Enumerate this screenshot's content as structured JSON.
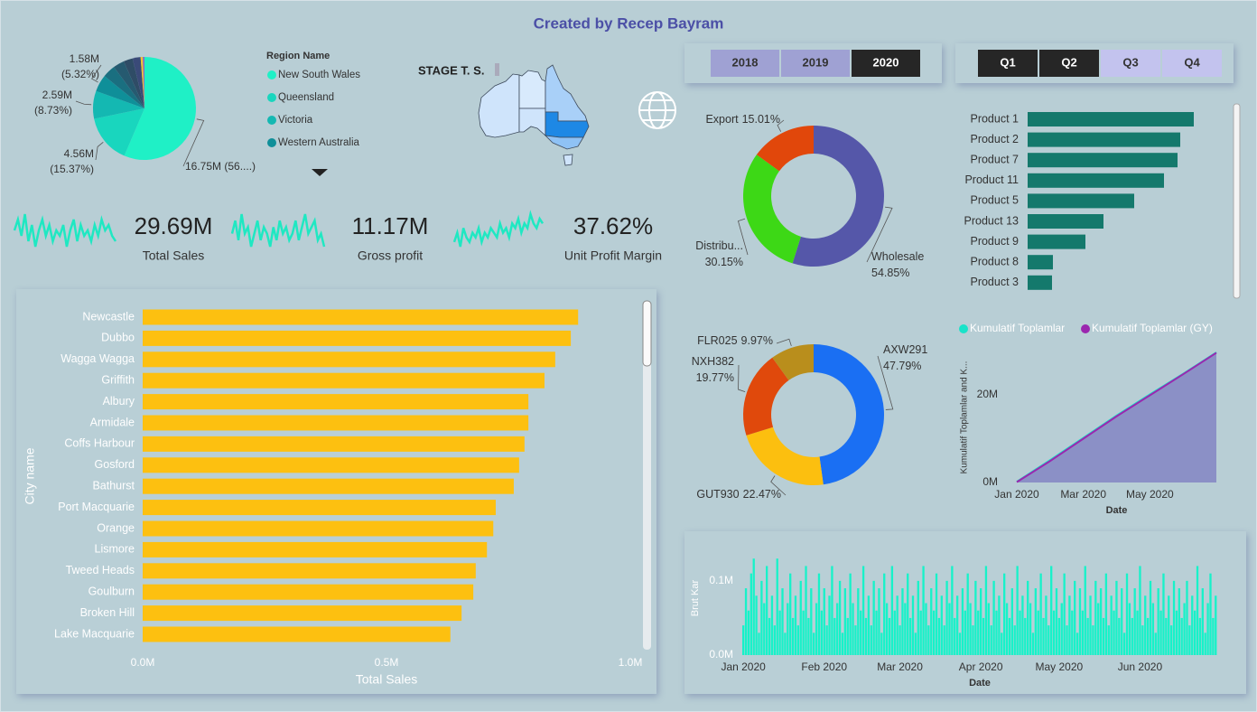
{
  "header": {
    "title": "Created by Recep Bayram"
  },
  "slicers": {
    "years": [
      "2018",
      "2019",
      "2020"
    ],
    "years_selected": [
      false,
      false,
      true
    ],
    "quarters": [
      "Q1",
      "Q2",
      "Q3",
      "Q4"
    ],
    "quarters_selected": [
      true,
      true,
      false,
      false
    ]
  },
  "map": {
    "title": "STAGE T. S."
  },
  "kpis": [
    {
      "value": "29.69M",
      "label": "Total Sales",
      "trend": [
        6,
        8,
        5,
        9,
        4,
        7,
        3,
        6,
        8,
        5,
        7,
        4,
        6,
        5,
        7,
        3,
        6,
        8,
        4,
        7,
        5,
        6,
        4,
        7,
        5,
        8,
        6,
        7,
        5,
        4
      ]
    },
    {
      "value": "11.17M",
      "label": "Gross profit",
      "trend": [
        5,
        7,
        4,
        8,
        5,
        6,
        3,
        5,
        7,
        4,
        6,
        5,
        3,
        6,
        4,
        7,
        5,
        6,
        4,
        5,
        7,
        4,
        6,
        8,
        5,
        6,
        7,
        4,
        5,
        3
      ]
    },
    {
      "value": "37.62%",
      "label": "Unit Profit Margin",
      "trend": [
        3,
        5,
        2,
        6,
        4,
        3,
        5,
        4,
        6,
        3,
        5,
        4,
        6,
        5,
        4,
        7,
        5,
        6,
        4,
        7,
        6,
        8,
        5,
        7,
        6,
        9,
        7,
        6,
        8,
        7
      ]
    }
  ],
  "chart_data": [
    {
      "type": "pie",
      "legend_title": "Region Name",
      "categories": [
        "New South Wales",
        "Queensland",
        "Victoria",
        "Western Australia",
        null,
        null,
        null,
        null,
        null,
        null
      ],
      "values": [
        16.75,
        4.56,
        2.59,
        1.58,
        1.2,
        1.05,
        0.85,
        0.75,
        0.2,
        0.16
      ],
      "value_labels": [
        "16.75M (56....)",
        "4.56M (15.37%)",
        "2.59M (8.73%)",
        "1.58M (5.32%)",
        null,
        null,
        null,
        null,
        null,
        null
      ],
      "colors": [
        "#1ff0c6",
        "#19d6be",
        "#14b8b2",
        "#0f8f99",
        "#1a6f80",
        "#265a70",
        "#2f4c66",
        "#3a4a78",
        "#f2c230",
        "#8a6cc0"
      ]
    },
    {
      "type": "donut",
      "categories": [
        "Wholesale",
        "Distribu...",
        "Export"
      ],
      "values": [
        54.85,
        30.15,
        15.01
      ],
      "value_labels": [
        "54.85%",
        "30.15%",
        "15.01%"
      ],
      "colors": [
        "#5557a9",
        "#3dd816",
        "#e1470b"
      ]
    },
    {
      "type": "hbar",
      "categories": [
        "Product 1",
        "Product 2",
        "Product 7",
        "Product 11",
        "Product 5",
        "Product 13",
        "Product 9",
        "Product 8",
        "Product 3"
      ],
      "values": [
        1.84,
        1.69,
        1.66,
        1.51,
        1.18,
        0.84,
        0.64,
        0.28,
        0.27
      ],
      "color": "#14796c"
    },
    {
      "type": "donut",
      "categories": [
        "AXW291",
        "GUT930",
        "NXH382",
        "FLR025"
      ],
      "values": [
        47.79,
        22.47,
        19.77,
        9.97
      ],
      "value_labels": [
        "47.79%",
        "22.47%",
        "19.77%",
        "9.97%"
      ],
      "colors": [
        "#1a6ff3",
        "#fcbf0f",
        "#e0490c",
        "#b98e1c"
      ]
    },
    {
      "type": "line",
      "x": [
        "Jan 2020",
        null,
        "Mar 2020",
        null,
        "May 2020",
        null,
        null
      ],
      "series": [
        {
          "name": "Kumulatif Toplamlar",
          "color": "#19e3c9",
          "values": [
            0.2,
            5.1,
            10.2,
            15.3,
            20.1,
            24.8,
            29.69
          ]
        },
        {
          "name": "Kumulatif Toplamlar (GY)",
          "color": "#9b27af",
          "values": [
            0.1,
            4.9,
            10.0,
            15.1,
            19.9,
            24.7,
            29.6
          ]
        }
      ],
      "ylim": [
        0,
        30
      ],
      "yticks": [
        {
          "value": 0,
          "label": "0M"
        },
        {
          "value": 20,
          "label": "20M"
        }
      ],
      "ylabel": "Kumulatif Toplamlar and K...",
      "xlabel": "Date",
      "area_color": "#8b90c6"
    },
    {
      "type": "bar",
      "categories": [
        "Jan 2020",
        null,
        null,
        null,
        null,
        null,
        null,
        null,
        null,
        null,
        null,
        null,
        null,
        null,
        null,
        null,
        null,
        null,
        null,
        null,
        null,
        null,
        null,
        null,
        null,
        null,
        null,
        null,
        null,
        null,
        null,
        "Feb 2020",
        null,
        null,
        null,
        null,
        null,
        null,
        null,
        null,
        null,
        null,
        null,
        null,
        null,
        null,
        null,
        null,
        null,
        null,
        null,
        null,
        null,
        null,
        null,
        null,
        null,
        null,
        null,
        null,
        "Mar 2020",
        null,
        null,
        null,
        null,
        null,
        null,
        null,
        null,
        null,
        null,
        null,
        null,
        null,
        null,
        null,
        null,
        null,
        null,
        null,
        null,
        null,
        null,
        null,
        null,
        null,
        null,
        null,
        null,
        null,
        null,
        "Apr 2020",
        null,
        null,
        null,
        null,
        null,
        null,
        null,
        null,
        null,
        null,
        null,
        null,
        null,
        null,
        null,
        null,
        null,
        null,
        null,
        null,
        null,
        null,
        null,
        null,
        null,
        null,
        null,
        null,
        null,
        "May 2020",
        null,
        null,
        null,
        null,
        null,
        null,
        null,
        null,
        null,
        null,
        null,
        null,
        null,
        null,
        null,
        null,
        null,
        null,
        null,
        null,
        null,
        null,
        null,
        null,
        null,
        null,
        null,
        null,
        null,
        null,
        "Jun 2020",
        null,
        null,
        null,
        null,
        null,
        null,
        null,
        null,
        null,
        null,
        null,
        null,
        null,
        null,
        null,
        null,
        null,
        null,
        null,
        null,
        null,
        null,
        null,
        null,
        null,
        null,
        null,
        null,
        null
      ],
      "values": [
        0.04,
        0.09,
        0.06,
        0.11,
        0.13,
        0.08,
        0.03,
        0.1,
        0.07,
        0.12,
        0.05,
        0.08,
        0.04,
        0.13,
        0.06,
        0.09,
        0.03,
        0.07,
        0.11,
        0.05,
        0.08,
        0.04,
        0.1,
        0.06,
        0.12,
        0.05,
        0.09,
        0.03,
        0.07,
        0.11,
        0.06,
        0.09,
        0.04,
        0.08,
        0.12,
        0.05,
        0.07,
        0.1,
        0.03,
        0.09,
        0.05,
        0.11,
        0.07,
        0.04,
        0.09,
        0.06,
        0.12,
        0.05,
        0.08,
        0.04,
        0.1,
        0.06,
        0.09,
        0.03,
        0.11,
        0.07,
        0.05,
        0.12,
        0.06,
        0.08,
        0.04,
        0.09,
        0.07,
        0.11,
        0.05,
        0.08,
        0.03,
        0.1,
        0.06,
        0.12,
        0.07,
        0.04,
        0.09,
        0.06,
        0.11,
        0.05,
        0.08,
        0.04,
        0.1,
        0.07,
        0.12,
        0.05,
        0.08,
        0.03,
        0.09,
        0.06,
        0.11,
        0.07,
        0.04,
        0.1,
        0.06,
        0.09,
        0.05,
        0.12,
        0.07,
        0.04,
        0.1,
        0.06,
        0.08,
        0.03,
        0.11,
        0.07,
        0.05,
        0.09,
        0.04,
        0.12,
        0.06,
        0.08,
        0.05,
        0.1,
        0.07,
        0.03,
        0.09,
        0.06,
        0.11,
        0.05,
        0.08,
        0.04,
        0.12,
        0.06,
        0.09,
        0.05,
        0.07,
        0.11,
        0.04,
        0.08,
        0.06,
        0.1,
        0.03,
        0.09,
        0.06,
        0.12,
        0.05,
        0.08,
        0.04,
        0.1,
        0.07,
        0.09,
        0.05,
        0.11,
        0.04,
        0.08,
        0.06,
        0.1,
        0.05,
        0.09,
        0.03,
        0.11,
        0.07,
        0.05,
        0.09,
        0.06,
        0.12,
        0.04,
        0.08,
        0.05,
        0.1,
        0.07,
        0.03,
        0.09,
        0.06,
        0.11,
        0.05,
        0.08,
        0.04,
        0.1,
        0.06,
        0.09,
        0.05,
        0.07,
        0.1,
        0.04,
        0.08,
        0.06,
        0.12,
        0.05,
        0.09,
        0.03,
        0.07,
        0.11,
        0.05,
        0.08
      ],
      "color": "#17f2c9",
      "ylim": [
        0,
        0.14
      ],
      "yticks": [
        {
          "value": 0,
          "label": "0.0M"
        },
        {
          "value": 0.1,
          "label": "0.1M"
        }
      ],
      "ylabel": "Brut Kar",
      "xlabel": "Date"
    },
    {
      "type": "hbar",
      "categories": [
        "Newcastle",
        "Dubbo",
        "Wagga Wagga",
        "Griffith",
        "Albury",
        "Armidale",
        "Coffs Harbour",
        "Gosford",
        "Bathurst",
        "Port Macquarie",
        "Orange",
        "Lismore",
        "Tweed Heads",
        "Goulburn",
        "Broken Hill",
        "Lake Macquarie"
      ],
      "values": [
        0.893,
        0.878,
        0.846,
        0.824,
        0.791,
        0.791,
        0.783,
        0.772,
        0.761,
        0.724,
        0.719,
        0.706,
        0.683,
        0.678,
        0.654,
        0.631
      ],
      "color": "#fdc010",
      "xlim": [
        0,
        1.0
      ],
      "xticks": [
        {
          "value": 0,
          "label": "0.0M"
        },
        {
          "value": 0.5,
          "label": "0.5M"
        },
        {
          "value": 1.0,
          "label": "1.0M"
        }
      ],
      "xlabel": "Total Sales",
      "ylabel": "City name"
    }
  ]
}
